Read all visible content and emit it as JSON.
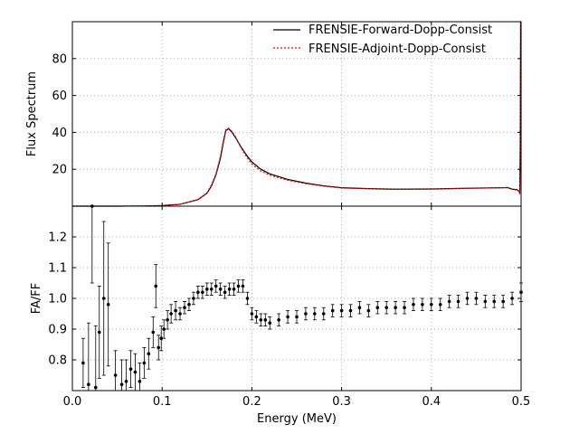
{
  "chart_data": [
    {
      "type": "line",
      "panel": "top",
      "title": "",
      "xlabel": "",
      "ylabel": "Flux Spectrum",
      "xlim": [
        0.0,
        0.5
      ],
      "ylim": [
        0,
        100
      ],
      "yticks": [
        20,
        40,
        60,
        80
      ],
      "ytick_labels": [
        "20",
        "40",
        "60",
        "80"
      ],
      "grid": true,
      "grid_style": "dotted",
      "legend_position": "top-right",
      "series": [
        {
          "name": "FRENSIE-Forward-Dopp-Consist",
          "color": "#000000",
          "style": "solid",
          "x": [
            0.0,
            0.05,
            0.08,
            0.1,
            0.12,
            0.14,
            0.15,
            0.155,
            0.16,
            0.165,
            0.168,
            0.171,
            0.174,
            0.178,
            0.182,
            0.188,
            0.195,
            0.2,
            0.21,
            0.22,
            0.24,
            0.26,
            0.28,
            0.3,
            0.33,
            0.36,
            0.4,
            0.44,
            0.48,
            0.485,
            0.49,
            0.495,
            0.498,
            0.4985,
            0.499,
            0.4995,
            0.5
          ],
          "y": [
            0.0,
            0.0,
            0.1,
            0.3,
            1.0,
            3.5,
            7.0,
            11.0,
            17.0,
            26.0,
            34.0,
            41.0,
            42.0,
            40.0,
            37.0,
            32.0,
            27.0,
            24.0,
            20.0,
            17.5,
            14.5,
            12.5,
            11.0,
            10.0,
            9.5,
            9.2,
            9.3,
            9.7,
            10.0,
            10.1,
            9.2,
            9.0,
            8.0,
            7.0,
            30.0,
            100.0,
            100.0
          ]
        },
        {
          "name": "FRENSIE-Adjoint-Dopp-Consist",
          "color": "#ff0000",
          "style": "dotted",
          "x": [
            0.0,
            0.05,
            0.08,
            0.1,
            0.12,
            0.14,
            0.15,
            0.155,
            0.16,
            0.165,
            0.168,
            0.171,
            0.174,
            0.178,
            0.182,
            0.188,
            0.195,
            0.2,
            0.21,
            0.22,
            0.24,
            0.26,
            0.28,
            0.3,
            0.33,
            0.36,
            0.4,
            0.44,
            0.48,
            0.485,
            0.49,
            0.495,
            0.498,
            0.4985,
            0.499,
            0.4995,
            0.5
          ],
          "y": [
            0.0,
            0.0,
            0.1,
            0.3,
            1.0,
            3.6,
            7.2,
            11.5,
            17.5,
            27.0,
            35.0,
            41.5,
            42.3,
            40.5,
            37.5,
            31.5,
            26.0,
            22.8,
            19.0,
            16.8,
            14.0,
            12.2,
            10.8,
            9.8,
            9.4,
            9.1,
            9.2,
            9.6,
            10.0,
            10.0,
            9.1,
            8.8,
            7.8,
            6.5,
            30.0,
            100.0,
            100.0
          ]
        }
      ]
    },
    {
      "type": "scatter",
      "panel": "bottom",
      "title": "",
      "xlabel": "Energy (MeV)",
      "ylabel": "FA/FF",
      "xlim": [
        0.0,
        0.5
      ],
      "ylim": [
        0.7,
        1.3
      ],
      "xticks": [
        0.0,
        0.1,
        0.2,
        0.3,
        0.4,
        0.5
      ],
      "xtick_labels": [
        "0.0",
        "0.1",
        "0.2",
        "0.3",
        "0.4",
        "0.5"
      ],
      "yticks": [
        0.8,
        0.9,
        1.0,
        1.1,
        1.2
      ],
      "ytick_labels": [
        "0.8",
        "0.9",
        "1.0",
        "1.1",
        "1.2"
      ],
      "grid": true,
      "grid_style": "dotted",
      "series": [
        {
          "color": "#000000",
          "marker": "dot",
          "error_bars": true,
          "x": [
            0.012,
            0.018,
            0.022,
            0.026,
            0.03,
            0.035,
            0.04,
            0.048,
            0.055,
            0.06,
            0.065,
            0.07,
            0.075,
            0.08,
            0.085,
            0.09,
            0.093,
            0.096,
            0.099,
            0.102,
            0.106,
            0.11,
            0.115,
            0.12,
            0.125,
            0.13,
            0.135,
            0.14,
            0.145,
            0.15,
            0.155,
            0.16,
            0.165,
            0.17,
            0.175,
            0.18,
            0.185,
            0.19,
            0.195,
            0.2,
            0.205,
            0.21,
            0.215,
            0.22,
            0.23,
            0.24,
            0.25,
            0.26,
            0.27,
            0.28,
            0.29,
            0.3,
            0.31,
            0.32,
            0.33,
            0.34,
            0.35,
            0.36,
            0.37,
            0.38,
            0.39,
            0.4,
            0.41,
            0.42,
            0.43,
            0.44,
            0.45,
            0.46,
            0.47,
            0.48,
            0.49,
            0.5
          ],
          "y": [
            0.79,
            0.72,
            1.3,
            0.71,
            0.89,
            1.0,
            0.98,
            0.75,
            0.72,
            0.73,
            0.77,
            0.76,
            0.73,
            0.79,
            0.82,
            0.89,
            1.04,
            0.84,
            0.87,
            0.9,
            0.93,
            0.95,
            0.96,
            0.95,
            0.97,
            0.98,
            1.0,
            1.02,
            1.02,
            1.03,
            1.03,
            1.04,
            1.03,
            1.02,
            1.03,
            1.03,
            1.04,
            1.04,
            1.0,
            0.95,
            0.94,
            0.93,
            0.93,
            0.92,
            0.93,
            0.94,
            0.94,
            0.95,
            0.95,
            0.95,
            0.96,
            0.96,
            0.96,
            0.97,
            0.96,
            0.97,
            0.97,
            0.97,
            0.97,
            0.98,
            0.98,
            0.98,
            0.98,
            0.99,
            0.99,
            1.0,
            1.0,
            0.99,
            0.99,
            0.99,
            1.0,
            1.02
          ],
          "err": [
            0.08,
            0.2,
            0.25,
            0.2,
            0.15,
            0.25,
            0.2,
            0.08,
            0.08,
            0.07,
            0.06,
            0.06,
            0.06,
            0.05,
            0.05,
            0.05,
            0.07,
            0.04,
            0.04,
            0.03,
            0.03,
            0.03,
            0.03,
            0.02,
            0.02,
            0.02,
            0.02,
            0.02,
            0.02,
            0.02,
            0.02,
            0.02,
            0.02,
            0.02,
            0.02,
            0.02,
            0.02,
            0.02,
            0.02,
            0.02,
            0.02,
            0.02,
            0.02,
            0.02,
            0.02,
            0.02,
            0.02,
            0.02,
            0.02,
            0.02,
            0.02,
            0.02,
            0.02,
            0.02,
            0.02,
            0.02,
            0.02,
            0.02,
            0.02,
            0.02,
            0.02,
            0.02,
            0.02,
            0.02,
            0.02,
            0.02,
            0.02,
            0.02,
            0.02,
            0.02,
            0.02,
            0.03
          ]
        }
      ]
    }
  ]
}
